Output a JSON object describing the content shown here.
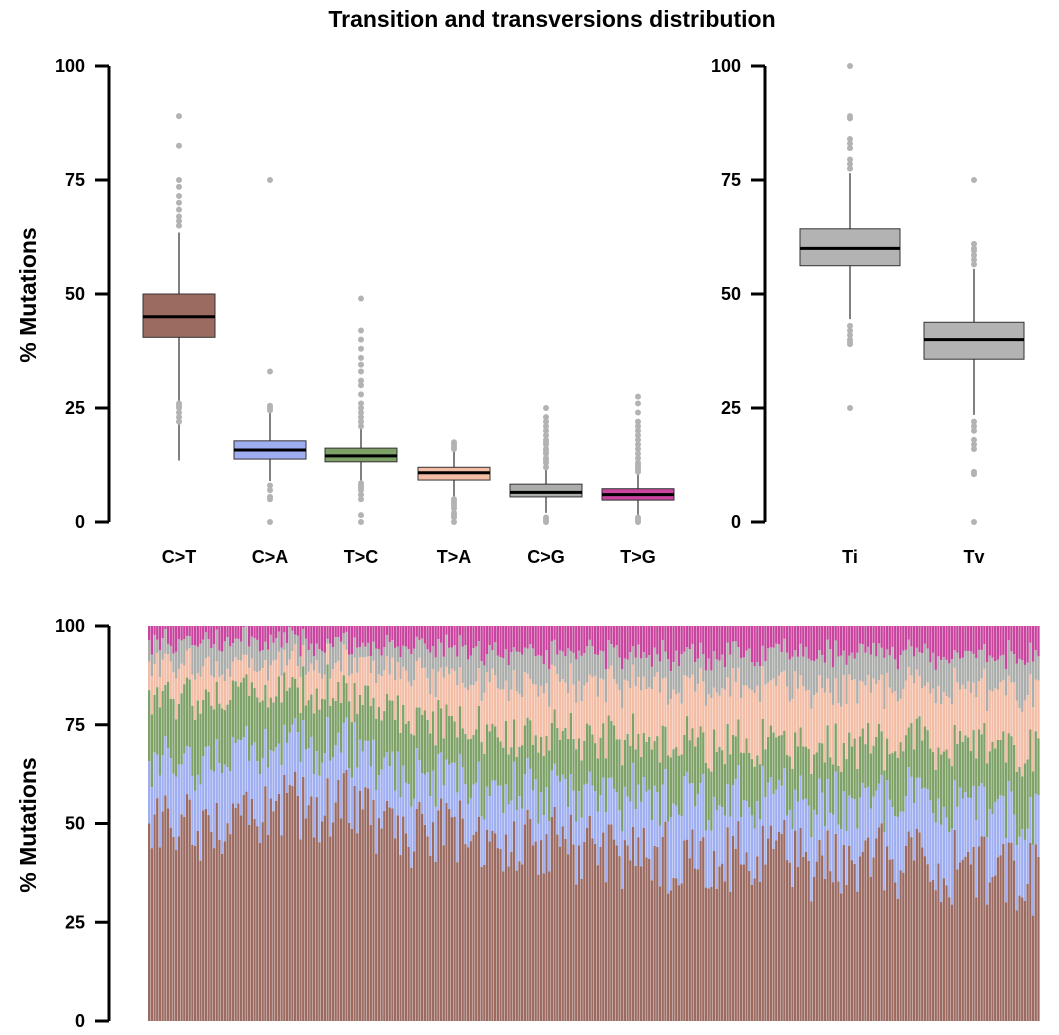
{
  "title": "Transition and transversions distribution",
  "chart_data": [
    {
      "type": "box",
      "panel": "top-left",
      "ylabel": "% Mutations",
      "ylim": [
        0,
        100
      ],
      "yticks": [
        "0",
        "25",
        "50",
        "75",
        "100"
      ],
      "categories": [
        "C>T",
        "C>A",
        "T>C",
        "T>A",
        "C>G",
        "T>G"
      ],
      "colors": [
        "#9b6a61",
        "#9eaef0",
        "#7da167",
        "#f3bca5",
        "#abadab",
        "#c8449e"
      ],
      "boxes": [
        {
          "min": 13.5,
          "q1": 40.5,
          "median": 45,
          "q3": 50,
          "max": 63.5,
          "outliers": [
            22,
            23,
            24,
            25,
            25.5,
            26,
            65,
            66,
            67,
            68.5,
            70,
            71.5,
            73.5,
            75,
            82.5,
            89
          ]
        },
        {
          "min": 9,
          "q1": 13.8,
          "median": 15.8,
          "q3": 17.8,
          "max": 24,
          "outliers": [
            0,
            5,
            5.5,
            7,
            8,
            24.5,
            25,
            25.5,
            33,
            75
          ]
        },
        {
          "min": 9,
          "q1": 13.2,
          "median": 14.5,
          "q3": 16.2,
          "max": 20.5,
          "outliers": [
            0,
            1.5,
            5,
            6,
            7,
            7.5,
            8,
            8.5,
            21,
            22,
            23,
            24,
            25,
            26,
            28,
            30,
            31,
            33,
            34.5,
            36,
            38,
            40,
            42,
            49
          ]
        },
        {
          "min": 5.5,
          "q1": 9.2,
          "median": 10.8,
          "q3": 12,
          "max": 15.5,
          "outliers": [
            0,
            1,
            1.5,
            2,
            3,
            3.5,
            4,
            4.5,
            5,
            16,
            16.5,
            17,
            17.5
          ]
        },
        {
          "min": 2,
          "q1": 5.5,
          "median": 6.5,
          "q3": 8.3,
          "max": 11.5,
          "outliers": [
            0,
            0.5,
            1,
            12,
            13,
            13.5,
            14,
            15,
            15.5,
            16,
            17,
            17.5,
            18,
            19,
            20,
            21,
            22,
            23,
            25
          ]
        },
        {
          "min": 1.5,
          "q1": 4.8,
          "median": 6,
          "q3": 7.3,
          "max": 10.5,
          "outliers": [
            0,
            0.5,
            1,
            11,
            11.5,
            12,
            12.5,
            13,
            14,
            15,
            16,
            17,
            18,
            19,
            20,
            21,
            22,
            24,
            26,
            27.5
          ]
        }
      ]
    },
    {
      "type": "box",
      "panel": "top-right",
      "ylim": [
        0,
        100
      ],
      "yticks": [
        "0",
        "25",
        "50",
        "75",
        "100"
      ],
      "categories": [
        "Ti",
        "Tv"
      ],
      "colors": [
        "#b3b3b3",
        "#b3b3b3"
      ],
      "boxes": [
        {
          "min": 44.5,
          "q1": 56.2,
          "median": 60,
          "q3": 64.3,
          "max": 76.5,
          "outliers": [
            25,
            39,
            39.5,
            40,
            41,
            42,
            43,
            77.5,
            78.5,
            79.5,
            82,
            83,
            84,
            88.5,
            89,
            100
          ]
        },
        {
          "min": 23.5,
          "q1": 35.7,
          "median": 40,
          "q3": 43.8,
          "max": 55.5,
          "outliers": [
            0,
            10.5,
            11,
            16,
            17,
            18,
            20,
            21,
            22,
            56.5,
            57.5,
            58.5,
            59.5,
            60,
            61,
            75
          ]
        }
      ]
    },
    {
      "type": "stacked_bar",
      "panel": "bottom",
      "ylabel": "% Mutations",
      "ylim": [
        0,
        100
      ],
      "yticks": [
        "0",
        "25",
        "50",
        "75",
        "100"
      ],
      "stack_order": [
        "C>T",
        "C>A",
        "T>C",
        "T>A",
        "C>G",
        "T>G"
      ],
      "colors": [
        "#9b6a61",
        "#9eaef0",
        "#7da167",
        "#f3bca5",
        "#abadab",
        "#c8449e"
      ],
      "n_samples": 330,
      "cumulative_trend": {
        "x": [
          0,
          0.05,
          0.1,
          0.15,
          0.2,
          0.25,
          0.3,
          0.35,
          0.4,
          0.45,
          0.5,
          0.55,
          0.6,
          0.65,
          0.7,
          0.75,
          0.8,
          0.85,
          0.9,
          0.95,
          1.0
        ],
        "C>T": [
          48,
          50,
          51,
          53,
          56,
          52,
          48,
          47,
          45,
          44,
          43,
          42,
          41,
          41,
          42,
          41,
          40,
          40,
          39,
          38,
          37
        ],
        "C>A": [
          63,
          66,
          68,
          68,
          71,
          66,
          61,
          60,
          59,
          58,
          57,
          57,
          57,
          56,
          56,
          55,
          55,
          56,
          56,
          54,
          52
        ],
        "T>C": [
          80,
          82,
          83,
          82,
          84,
          80,
          76,
          74,
          73,
          72,
          71,
          71,
          71,
          70,
          70,
          69,
          69,
          70,
          71,
          69,
          68
        ],
        "T>A": [
          89,
          90,
          90,
          90,
          91,
          89,
          87,
          86,
          86,
          85,
          85,
          85,
          85,
          85,
          84,
          84,
          84,
          84,
          85,
          84,
          83
        ],
        "C>G": [
          95,
          96,
          96,
          96,
          96,
          95,
          94,
          94,
          94,
          93,
          93,
          93,
          93,
          93,
          93,
          93,
          93,
          93,
          93,
          92,
          92
        ]
      }
    }
  ]
}
